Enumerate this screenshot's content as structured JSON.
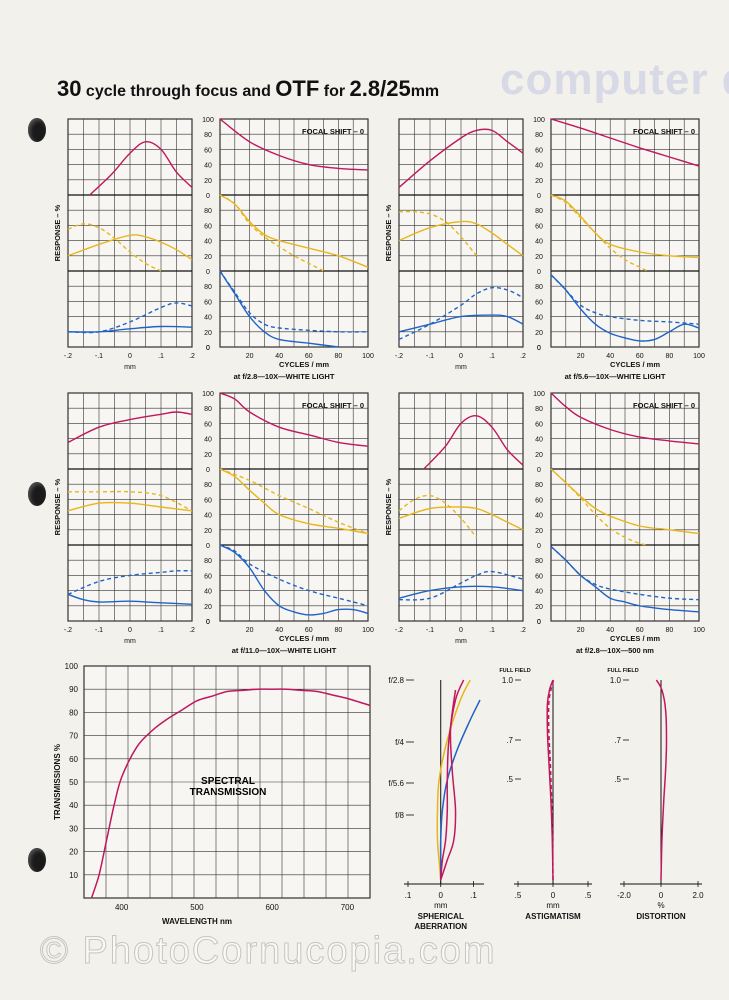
{
  "page": {
    "title_num1": "30",
    "title_text1": " cycle through focus and ",
    "title_otf": "OTF",
    "title_for": " for ",
    "title_lens": "2.8/25",
    "title_mm": "mm",
    "bleed_text": "computer dl. ",
    "watermark": "© PhotoCornucopia.com"
  },
  "otf_labels": {
    "response": "RESPONSE – %",
    "mm": "mm",
    "cycles": "CYCLES / mm",
    "focal_shift": "FOCAL SHIFT – 0",
    "focus_ticks": [
      "-.2",
      "-.1",
      "0",
      ".1",
      ".2"
    ],
    "freq_ticks": [
      "20",
      "40",
      "60",
      "80",
      "100"
    ],
    "resp_ticks": [
      "100",
      "80",
      "60",
      "40",
      "20",
      "0"
    ]
  },
  "colors": {
    "magenta": "#c0175e",
    "yellow": "#e8b61a",
    "blue": "#1f63c8",
    "grid": "#333333"
  },
  "chart_data": [
    {
      "type": "line",
      "title": "at f/2.8—10X—WHITE LIGHT",
      "focus_curves": {
        "magenta": {
          "x": [
            -0.13,
            -0.06,
            0.0,
            0.05,
            0.1,
            0.15,
            0.2
          ],
          "y": [
            0,
            27,
            55,
            70,
            60,
            30,
            10
          ]
        },
        "yellow_solid": {
          "x": [
            -0.2,
            -0.1,
            0.0,
            0.05,
            0.1,
            0.15,
            0.2
          ],
          "y": [
            20,
            35,
            47,
            45,
            38,
            28,
            15
          ]
        },
        "yellow_dashed": {
          "x": [
            -0.2,
            -0.15,
            -0.1,
            -0.05,
            0.0,
            0.05,
            0.1
          ],
          "y": [
            55,
            62,
            57,
            43,
            25,
            10,
            0
          ]
        },
        "blue_solid": {
          "x": [
            -0.2,
            -0.1,
            0.0,
            0.1,
            0.2
          ],
          "y": [
            20,
            20,
            24,
            27,
            26
          ]
        },
        "blue_dashed": {
          "x": [
            -0.2,
            -0.1,
            0.0,
            0.1,
            0.15,
            0.2
          ],
          "y": [
            20,
            20,
            33,
            52,
            58,
            54
          ]
        }
      },
      "freq_curves": {
        "magenta": {
          "x": [
            0,
            20,
            40,
            60,
            80,
            100
          ],
          "y": [
            100,
            70,
            52,
            40,
            35,
            33
          ]
        },
        "yellow_solid": {
          "x": [
            0,
            10,
            20,
            30,
            40,
            60,
            80,
            100
          ],
          "y": [
            100,
            88,
            65,
            48,
            40,
            30,
            20,
            5
          ]
        },
        "yellow_dashed": {
          "x": [
            0,
            10,
            20,
            30,
            40,
            50,
            60,
            70
          ],
          "y": [
            100,
            88,
            62,
            45,
            32,
            20,
            10,
            0
          ]
        },
        "blue_solid": {
          "x": [
            0,
            10,
            20,
            30,
            40,
            60,
            80
          ],
          "y": [
            100,
            70,
            40,
            20,
            10,
            5,
            0
          ]
        },
        "blue_dashed": {
          "x": [
            0,
            10,
            20,
            30,
            40,
            60,
            80,
            100
          ],
          "y": [
            100,
            72,
            45,
            30,
            25,
            22,
            20,
            20
          ]
        }
      }
    },
    {
      "type": "line",
      "title": "at f/5.6—10X—WHITE LIGHT",
      "focus_curves": {
        "magenta": {
          "x": [
            -0.2,
            -0.1,
            0.0,
            0.05,
            0.1,
            0.15,
            0.2
          ],
          "y": [
            10,
            45,
            75,
            85,
            85,
            70,
            55
          ]
        },
        "yellow_solid": {
          "x": [
            -0.2,
            -0.1,
            0.0,
            0.05,
            0.1,
            0.15,
            0.2
          ],
          "y": [
            40,
            57,
            65,
            62,
            50,
            35,
            20
          ]
        },
        "yellow_dashed": {
          "x": [
            -0.2,
            -0.15,
            -0.1,
            -0.05,
            0.0,
            0.05
          ],
          "y": [
            78,
            78,
            75,
            65,
            45,
            20
          ]
        },
        "blue_solid": {
          "x": [
            -0.2,
            -0.1,
            0.0,
            0.1,
            0.15,
            0.2
          ],
          "y": [
            20,
            30,
            40,
            42,
            40,
            30
          ]
        },
        "blue_dashed": {
          "x": [
            -0.2,
            -0.1,
            0.0,
            0.05,
            0.1,
            0.15,
            0.2
          ],
          "y": [
            10,
            30,
            55,
            70,
            78,
            75,
            65
          ]
        }
      },
      "freq_curves": {
        "magenta": {
          "x": [
            0,
            20,
            40,
            60,
            80,
            100
          ],
          "y": [
            100,
            88,
            75,
            62,
            50,
            38
          ]
        },
        "yellow_solid": {
          "x": [
            0,
            10,
            20,
            30,
            40,
            60,
            80,
            100
          ],
          "y": [
            100,
            92,
            72,
            50,
            35,
            25,
            20,
            18
          ]
        },
        "yellow_dashed": {
          "x": [
            0,
            10,
            20,
            30,
            40,
            50,
            60,
            65
          ],
          "y": [
            100,
            90,
            70,
            50,
            30,
            15,
            5,
            0
          ]
        },
        "blue_solid": {
          "x": [
            0,
            10,
            20,
            30,
            40,
            50,
            60,
            70,
            80,
            90,
            100
          ],
          "y": [
            95,
            75,
            50,
            30,
            18,
            12,
            8,
            10,
            20,
            30,
            25
          ]
        },
        "blue_dashed": {
          "x": [
            0,
            10,
            20,
            30,
            40,
            60,
            80,
            100
          ],
          "y": [
            95,
            75,
            55,
            45,
            40,
            35,
            33,
            30
          ]
        }
      }
    },
    {
      "type": "line",
      "title": "at f/11.0—10X—WHITE LIGHT",
      "focus_curves": {
        "magenta": {
          "x": [
            -0.2,
            -0.1,
            0.0,
            0.1,
            0.15,
            0.2
          ],
          "y": [
            35,
            55,
            65,
            72,
            75,
            72
          ]
        },
        "yellow_solid": {
          "x": [
            -0.2,
            -0.1,
            0.0,
            0.1,
            0.2
          ],
          "y": [
            45,
            55,
            55,
            50,
            45
          ]
        },
        "yellow_dashed": {
          "x": [
            -0.2,
            -0.1,
            0.0,
            0.1,
            0.2
          ],
          "y": [
            70,
            70,
            70,
            65,
            45
          ]
        },
        "blue_solid": {
          "x": [
            -0.2,
            -0.15,
            -0.1,
            0.0,
            0.1,
            0.2
          ],
          "y": [
            35,
            28,
            25,
            26,
            24,
            22
          ]
        },
        "blue_dashed": {
          "x": [
            -0.2,
            -0.1,
            0.0,
            0.1,
            0.15,
            0.2
          ],
          "y": [
            35,
            52,
            60,
            64,
            66,
            66
          ]
        }
      },
      "freq_curves": {
        "magenta": {
          "x": [
            0,
            10,
            20,
            40,
            60,
            80,
            100
          ],
          "y": [
            100,
            92,
            75,
            55,
            45,
            35,
            30
          ]
        },
        "yellow_solid": {
          "x": [
            0,
            10,
            20,
            30,
            40,
            60,
            80,
            100
          ],
          "y": [
            100,
            90,
            72,
            55,
            40,
            28,
            22,
            15
          ]
        },
        "yellow_dashed": {
          "x": [
            0,
            20,
            40,
            60,
            80,
            100
          ],
          "y": [
            100,
            85,
            65,
            48,
            30,
            15
          ]
        },
        "blue_solid": {
          "x": [
            0,
            10,
            20,
            30,
            40,
            50,
            60,
            70,
            80,
            90,
            100
          ],
          "y": [
            100,
            90,
            70,
            40,
            20,
            12,
            8,
            10,
            15,
            15,
            10
          ]
        },
        "blue_dashed": {
          "x": [
            0,
            10,
            20,
            40,
            60,
            80,
            100
          ],
          "y": [
            100,
            92,
            75,
            55,
            40,
            30,
            20
          ]
        }
      }
    },
    {
      "type": "line",
      "title": "at f/2.8—10X—500 nm",
      "focus_curves": {
        "magenta": {
          "x": [
            -0.12,
            -0.05,
            0.0,
            0.05,
            0.1,
            0.15,
            0.2
          ],
          "y": [
            0,
            30,
            60,
            70,
            55,
            25,
            5
          ]
        },
        "yellow_solid": {
          "x": [
            -0.2,
            -0.1,
            0.0,
            0.05,
            0.1,
            0.15,
            0.2
          ],
          "y": [
            35,
            48,
            50,
            48,
            40,
            30,
            20
          ]
        },
        "yellow_dashed": {
          "x": [
            -0.2,
            -0.15,
            -0.1,
            -0.05,
            0.0,
            0.05
          ],
          "y": [
            45,
            60,
            65,
            55,
            35,
            10
          ]
        },
        "blue_solid": {
          "x": [
            -0.2,
            -0.1,
            0.0,
            0.1,
            0.2
          ],
          "y": [
            30,
            40,
            45,
            45,
            40
          ]
        },
        "blue_dashed": {
          "x": [
            -0.2,
            -0.1,
            0.0,
            0.05,
            0.1,
            0.2
          ],
          "y": [
            28,
            30,
            50,
            60,
            65,
            55
          ]
        }
      },
      "freq_curves": {
        "magenta": {
          "x": [
            0,
            10,
            20,
            40,
            60,
            80,
            100
          ],
          "y": [
            100,
            82,
            68,
            52,
            42,
            37,
            33
          ]
        },
        "yellow_solid": {
          "x": [
            0,
            10,
            20,
            30,
            40,
            60,
            80,
            100
          ],
          "y": [
            100,
            82,
            64,
            48,
            38,
            25,
            20,
            15
          ]
        },
        "yellow_dashed": {
          "x": [
            0,
            10,
            20,
            30,
            40,
            50,
            60,
            65
          ],
          "y": [
            100,
            82,
            62,
            40,
            22,
            10,
            2,
            0
          ]
        },
        "blue_solid": {
          "x": [
            0,
            10,
            20,
            30,
            40,
            50,
            60,
            80,
            100
          ],
          "y": [
            98,
            80,
            60,
            45,
            30,
            25,
            20,
            15,
            12
          ]
        },
        "blue_dashed": {
          "x": [
            0,
            10,
            20,
            30,
            40,
            60,
            80,
            100
          ],
          "y": [
            98,
            80,
            60,
            48,
            42,
            35,
            30,
            28
          ]
        }
      }
    },
    {
      "type": "line",
      "title": "SPECTRAL TRANSMISSION",
      "xlabel": "WAVELENGTH nm",
      "ylabel": "TRANSMISSIONS %",
      "x_ticks": [
        "400",
        "500",
        "600",
        "700"
      ],
      "y_ticks": [
        "100",
        "90",
        "80",
        "70",
        "60",
        "50",
        "40",
        "30",
        "20",
        "10"
      ],
      "xlim": [
        350,
        730
      ],
      "ylim": [
        0,
        100
      ],
      "series": [
        {
          "x": [
            360,
            370,
            380,
            390,
            400,
            420,
            440,
            460,
            480,
            500,
            520,
            540,
            560,
            580,
            600,
            620,
            640,
            660,
            680,
            700,
            730
          ],
          "y": [
            0,
            10,
            25,
            40,
            52,
            65,
            72,
            77,
            81,
            85,
            87,
            89,
            89.5,
            90,
            90,
            90,
            89.5,
            89,
            87.5,
            86,
            83
          ]
        }
      ]
    },
    {
      "type": "line",
      "title": "SPHERICAL ABERRATION",
      "x_ticks": [
        ".1",
        "0",
        ".1"
      ],
      "xlabel": "mm",
      "aperture_labels": [
        "f/2.8",
        "f/4",
        "f/5.6",
        "f/8"
      ],
      "xlim": [
        -0.1,
        0.12
      ],
      "series": [
        {
          "name": "yellow",
          "x": [
            0,
            -0.005,
            -0.01,
            -0.01,
            -0.005,
            0.02,
            0.06,
            0.09
          ],
          "y": [
            0,
            0.1,
            0.2,
            0.35,
            0.5,
            0.7,
            0.9,
            1.0
          ]
        },
        {
          "name": "blue",
          "x": [
            0,
            0,
            0,
            0.005,
            0.02,
            0.05,
            0.09,
            0.12
          ],
          "y": [
            0,
            0.1,
            0.2,
            0.35,
            0.5,
            0.65,
            0.8,
            0.9
          ]
        },
        {
          "name": "magenta-1",
          "x": [
            0,
            0.005,
            0.015,
            0.02,
            0.02,
            0.025,
            0.045,
            0.07
          ],
          "y": [
            0,
            0.1,
            0.2,
            0.35,
            0.5,
            0.7,
            0.9,
            1.0
          ]
        },
        {
          "name": "magenta-2",
          "x": [
            0,
            0.02,
            0.04,
            0.045,
            0.035,
            0.03,
            0.045
          ],
          "y": [
            0,
            0.1,
            0.2,
            0.35,
            0.55,
            0.75,
            0.95
          ]
        }
      ]
    },
    {
      "type": "line",
      "title": "ASTIGMATISM",
      "top_label": "FULL FIELD",
      "x_ticks": [
        ".5",
        "0",
        ".5"
      ],
      "xlabel": "mm",
      "y_ticks": [
        "1.0",
        ".7",
        ".5"
      ],
      "xlim": [
        -0.5,
        0.5
      ],
      "series": [
        {
          "name": "solid",
          "x": [
            0,
            -0.01,
            -0.03,
            -0.06,
            -0.08,
            -0.08,
            -0.05,
            0.0
          ],
          "y": [
            0,
            0.2,
            0.4,
            0.6,
            0.75,
            0.88,
            0.95,
            1.0
          ]
        },
        {
          "name": "dashed",
          "x": [
            0,
            -0.005,
            -0.02,
            -0.04,
            -0.06,
            -0.06,
            -0.03,
            0.01
          ],
          "y": [
            0,
            0.2,
            0.4,
            0.6,
            0.75,
            0.88,
            0.95,
            1.0
          ]
        }
      ]
    },
    {
      "type": "line",
      "title": "DISTORTION",
      "top_label": "FULL FIELD",
      "x_ticks": [
        "-2.0",
        "0",
        "2.0"
      ],
      "xlabel": "%",
      "y_ticks": [
        "1.0",
        ".7",
        ".5"
      ],
      "xlim": [
        -2,
        2
      ],
      "series": [
        {
          "x": [
            0,
            0.05,
            0.15,
            0.25,
            0.3,
            0.25,
            0.05,
            -0.25
          ],
          "y": [
            0,
            0.2,
            0.4,
            0.55,
            0.7,
            0.85,
            0.95,
            1.0
          ]
        }
      ]
    }
  ]
}
